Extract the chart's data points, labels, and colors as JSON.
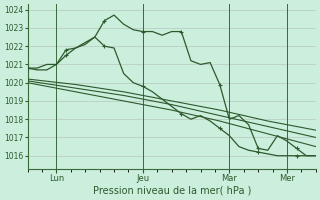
{
  "background_color": "#cceedd",
  "grid_color": "#b8c8c0",
  "line_color": "#2d5a2d",
  "marker": "+",
  "ylim": [
    1015.3,
    1024.3
  ],
  "yticks": [
    1016,
    1017,
    1018,
    1019,
    1020,
    1021,
    1022,
    1023,
    1024
  ],
  "xlabel": "Pression niveau de la mer( hPa )",
  "day_labels": [
    "Lun",
    "Jeu",
    "Mar",
    "Mer"
  ],
  "day_positions": [
    12,
    48,
    84,
    108
  ],
  "xlim": [
    0,
    120
  ],
  "series": [
    {
      "name": "line1_peaked_early",
      "x": [
        0,
        4,
        8,
        12,
        16,
        20,
        24,
        28,
        32,
        36,
        40,
        44,
        48,
        52,
        56,
        60,
        64,
        68,
        72,
        76,
        80,
        84,
        88,
        92,
        96,
        100,
        104,
        108,
        112,
        116,
        120
      ],
      "y": [
        1020.8,
        1020.7,
        1020.7,
        1021.0,
        1021.5,
        1021.9,
        1022.1,
        1022.5,
        1022.0,
        1021.9,
        1020.5,
        1020.0,
        1019.8,
        1019.5,
        1019.1,
        1018.7,
        1018.3,
        1018.0,
        1018.2,
        1017.9,
        1017.5,
        1017.1,
        1016.5,
        1016.3,
        1016.2,
        1016.1,
        1016.0,
        1016.0,
        1016.0,
        1016.0,
        1016.0
      ]
    },
    {
      "name": "line2_peaked_late",
      "x": [
        0,
        4,
        8,
        12,
        16,
        20,
        24,
        28,
        32,
        36,
        40,
        44,
        48,
        52,
        56,
        60,
        64,
        68,
        72,
        76,
        80,
        84,
        88,
        92,
        96,
        100,
        104,
        108,
        112,
        116,
        120
      ],
      "y": [
        1020.8,
        1020.8,
        1021.0,
        1021.0,
        1021.8,
        1021.9,
        1022.2,
        1022.5,
        1023.4,
        1023.7,
        1023.2,
        1022.9,
        1022.8,
        1022.8,
        1022.6,
        1022.8,
        1022.8,
        1021.2,
        1021.0,
        1021.1,
        1019.9,
        1018.0,
        1018.2,
        1017.7,
        1016.4,
        1016.3,
        1017.1,
        1016.8,
        1016.4,
        1016.0,
        1016.0
      ]
    },
    {
      "name": "line3_flat",
      "x": [
        0,
        20,
        40,
        60,
        80,
        100,
        120
      ],
      "y": [
        1020.2,
        1019.9,
        1019.5,
        1019.0,
        1018.5,
        1017.9,
        1017.4
      ]
    },
    {
      "name": "line4_flat",
      "x": [
        0,
        20,
        40,
        60,
        80,
        100,
        120
      ],
      "y": [
        1020.1,
        1019.7,
        1019.3,
        1018.8,
        1018.2,
        1017.6,
        1017.0
      ]
    },
    {
      "name": "line5_flat",
      "x": [
        0,
        20,
        40,
        60,
        80,
        100,
        120
      ],
      "y": [
        1020.0,
        1019.5,
        1019.0,
        1018.5,
        1017.9,
        1017.2,
        1016.5
      ]
    }
  ]
}
